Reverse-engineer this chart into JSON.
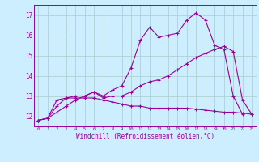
{
  "x": [
    0,
    1,
    2,
    3,
    4,
    5,
    6,
    7,
    8,
    9,
    10,
    11,
    12,
    13,
    14,
    15,
    16,
    17,
    18,
    19,
    20,
    21,
    22,
    23
  ],
  "line1": [
    11.8,
    11.9,
    12.8,
    12.9,
    13.0,
    13.0,
    13.2,
    13.0,
    13.3,
    13.5,
    14.4,
    15.75,
    16.4,
    15.9,
    16.0,
    16.1,
    16.75,
    17.1,
    16.75,
    15.5,
    15.3,
    13.0,
    12.1,
    null
  ],
  "line2": [
    11.8,
    11.9,
    12.2,
    12.5,
    12.8,
    13.0,
    13.2,
    12.9,
    13.0,
    13.0,
    13.2,
    13.5,
    13.7,
    13.8,
    14.0,
    14.3,
    14.6,
    14.9,
    15.1,
    15.3,
    15.45,
    15.2,
    12.8,
    12.1
  ],
  "line3": [
    11.8,
    11.9,
    12.5,
    12.9,
    12.9,
    12.9,
    12.9,
    12.8,
    12.7,
    12.6,
    12.5,
    12.5,
    12.4,
    12.4,
    12.4,
    12.4,
    12.4,
    12.35,
    12.3,
    12.25,
    12.2,
    12.2,
    12.15,
    12.1
  ],
  "bg_color": "#cceeff",
  "line_color": "#990099",
  "grid_color": "#aacccc",
  "xlabel": "Windchill (Refroidissement éolien,°C)",
  "ylim": [
    11.5,
    17.5
  ],
  "xlim": [
    -0.5,
    23.5
  ],
  "yticks": [
    12,
    13,
    14,
    15,
    16,
    17
  ],
  "xticks": [
    0,
    1,
    2,
    3,
    4,
    5,
    6,
    7,
    8,
    9,
    10,
    11,
    12,
    13,
    14,
    15,
    16,
    17,
    18,
    19,
    20,
    21,
    22,
    23
  ]
}
